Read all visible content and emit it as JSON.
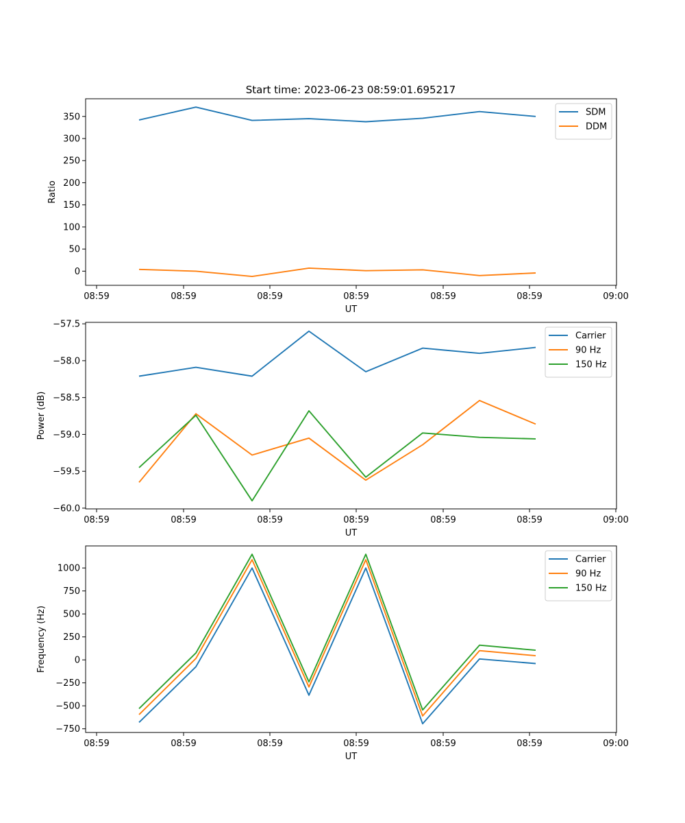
{
  "figure": {
    "title": "Start time: 2023-06-23 08:59:01.695217"
  },
  "chart_data": [
    {
      "type": "line",
      "xlabel": "UT",
      "ylabel": "Ratio",
      "x_tick_labels": [
        "08:59",
        "08:59",
        "08:59",
        "08:59",
        "08:59",
        "08:59",
        "09:00"
      ],
      "y_ticks": [
        0,
        50,
        100,
        150,
        200,
        250,
        300,
        350
      ],
      "ylim": [
        -32,
        390
      ],
      "grid": false,
      "legend": "top-right",
      "series": [
        {
          "name": "SDM",
          "color": "#1f77b4",
          "values": [
            342,
            371,
            341,
            345,
            338,
            346,
            361,
            350
          ]
        },
        {
          "name": "DDM",
          "color": "#ff7f0e",
          "values": [
            4,
            0,
            -12,
            7,
            1,
            3,
            -10,
            -4
          ]
        }
      ]
    },
    {
      "type": "line",
      "xlabel": "UT",
      "ylabel": "Power (dB)",
      "x_tick_labels": [
        "08:59",
        "08:59",
        "08:59",
        "08:59",
        "08:59",
        "08:59",
        "09:00"
      ],
      "y_ticks": [
        -60.0,
        -59.5,
        -59.0,
        -58.5,
        -58.0,
        -57.5
      ],
      "y_tick_labels": [
        "−60.0",
        "−59.5",
        "−59.0",
        "−58.5",
        "−58.0",
        "−57.5"
      ],
      "ylim": [
        -60.01,
        -57.48
      ],
      "grid": false,
      "legend": "top-right",
      "series": [
        {
          "name": "Carrier",
          "color": "#1f77b4",
          "values": [
            -58.21,
            -58.09,
            -58.21,
            -57.6,
            -58.15,
            -57.83,
            -57.9,
            -57.82
          ]
        },
        {
          "name": "90 Hz",
          "color": "#ff7f0e",
          "values": [
            -59.65,
            -58.72,
            -59.28,
            -59.05,
            -59.62,
            -59.14,
            -58.54,
            -58.86
          ]
        },
        {
          "name": "150 Hz",
          "color": "#2ca02c",
          "values": [
            -59.45,
            -58.74,
            -59.9,
            -58.68,
            -59.58,
            -58.98,
            -59.04,
            -59.06
          ]
        }
      ]
    },
    {
      "type": "line",
      "xlabel": "UT",
      "ylabel": "Frequency (Hz)",
      "x_tick_labels": [
        "08:59",
        "08:59",
        "08:59",
        "08:59",
        "08:59",
        "08:59",
        "09:00"
      ],
      "y_ticks": [
        -750,
        -500,
        -250,
        0,
        250,
        500,
        750,
        1000
      ],
      "y_tick_labels": [
        "−750",
        "−500",
        "−250",
        "0",
        "250",
        "500",
        "750",
        "1000"
      ],
      "ylim": [
        -790,
        1240
      ],
      "grid": false,
      "legend": "top-right",
      "series": [
        {
          "name": "Carrier",
          "color": "#1f77b4",
          "values": [
            -680,
            -75,
            1000,
            -385,
            1000,
            -695,
            10,
            -40
          ]
        },
        {
          "name": "90 Hz",
          "color": "#ff7f0e",
          "values": [
            -595,
            15,
            1090,
            -295,
            1090,
            -610,
            100,
            45
          ]
        },
        {
          "name": "150 Hz",
          "color": "#2ca02c",
          "values": [
            -530,
            75,
            1150,
            -240,
            1150,
            -545,
            160,
            105
          ]
        }
      ]
    }
  ]
}
